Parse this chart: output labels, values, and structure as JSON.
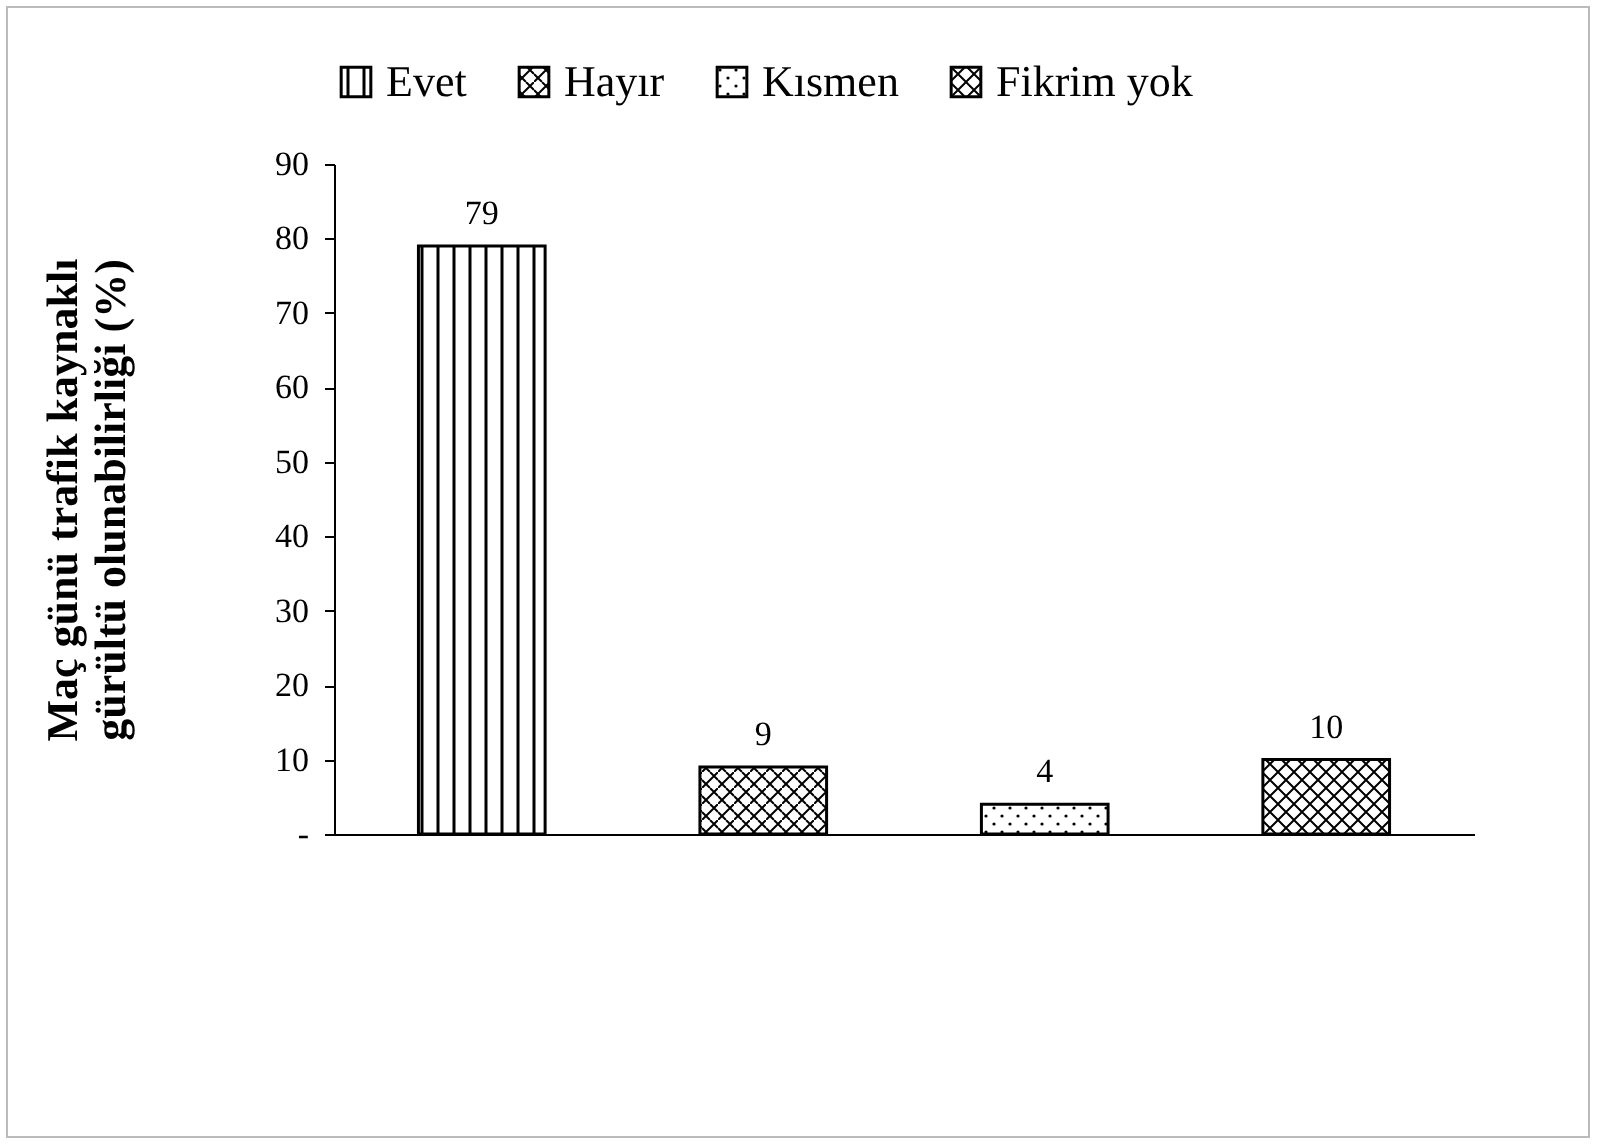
{
  "chart_data": {
    "type": "bar",
    "ylabel": "Maç günü trafik kaynaklı\ngürültü  olunabilirliği (%)",
    "categories": [
      null,
      null,
      null,
      null
    ],
    "series": [
      {
        "name": "Evet",
        "color": "#000000",
        "values": [
          79,
          null,
          null,
          null
        ]
      },
      {
        "name": "Hayır",
        "color": "#000000",
        "values": [
          null,
          9,
          null,
          null
        ]
      },
      {
        "name": "Kısmen",
        "color": "#000000",
        "values": [
          null,
          null,
          4,
          null
        ]
      },
      {
        "name": "Fikrim yok",
        "color": "#000000",
        "values": [
          null,
          null,
          null,
          10
        ]
      }
    ],
    "ylim": [
      0,
      90
    ],
    "yticks": [
      {
        "value": 0,
        "label": "-"
      },
      10,
      20,
      30,
      40,
      50,
      60,
      70,
      80,
      90
    ],
    "data_labels": true,
    "grid": false,
    "legend": "top"
  }
}
